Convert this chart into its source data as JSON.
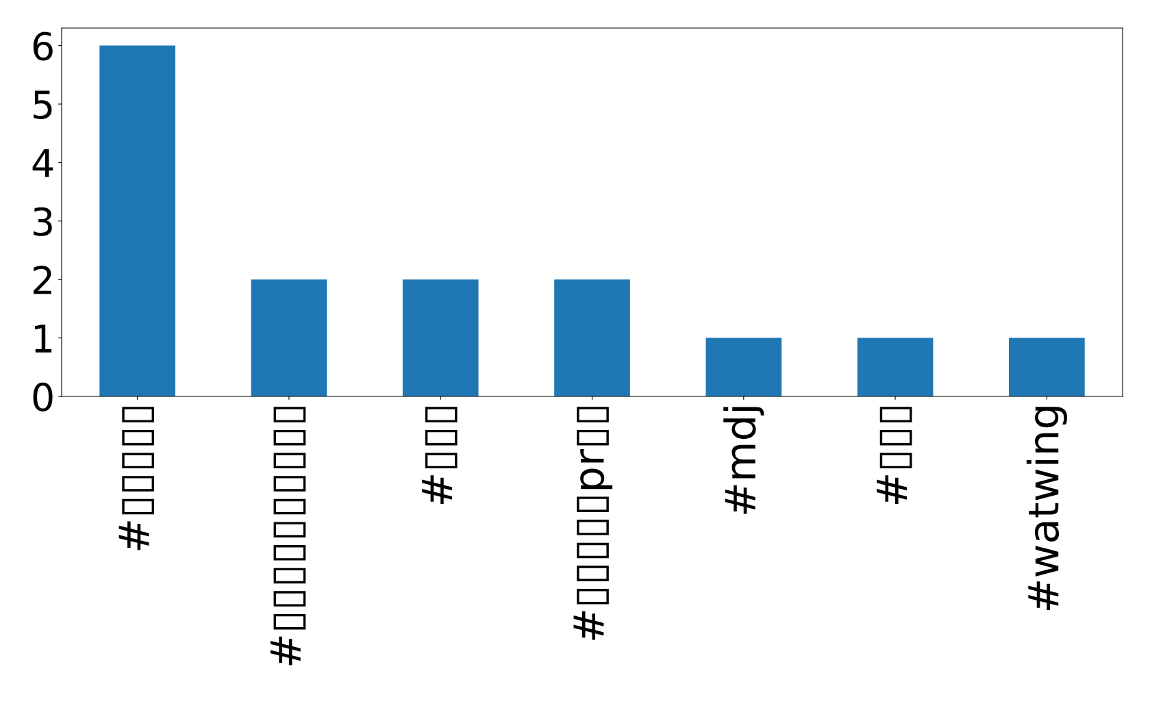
{
  "chart_data": {
    "type": "bar",
    "categories": [
      "#▯▯▯▯▯",
      "#▯▯▯▯▯▯▯▯▯▯",
      "#▯▯▯",
      "#▯▯▯▯▯pr▯▯",
      "#mdj",
      "#▯▯▯",
      "#watwing"
    ],
    "values": [
      6,
      2,
      2,
      2,
      1,
      1,
      1
    ],
    "color": "#1f77b4",
    "ylim": [
      0,
      6.3
    ],
    "yticks": [
      0,
      1,
      2,
      3,
      4,
      5,
      6
    ],
    "grid": false,
    "legend": false
  }
}
